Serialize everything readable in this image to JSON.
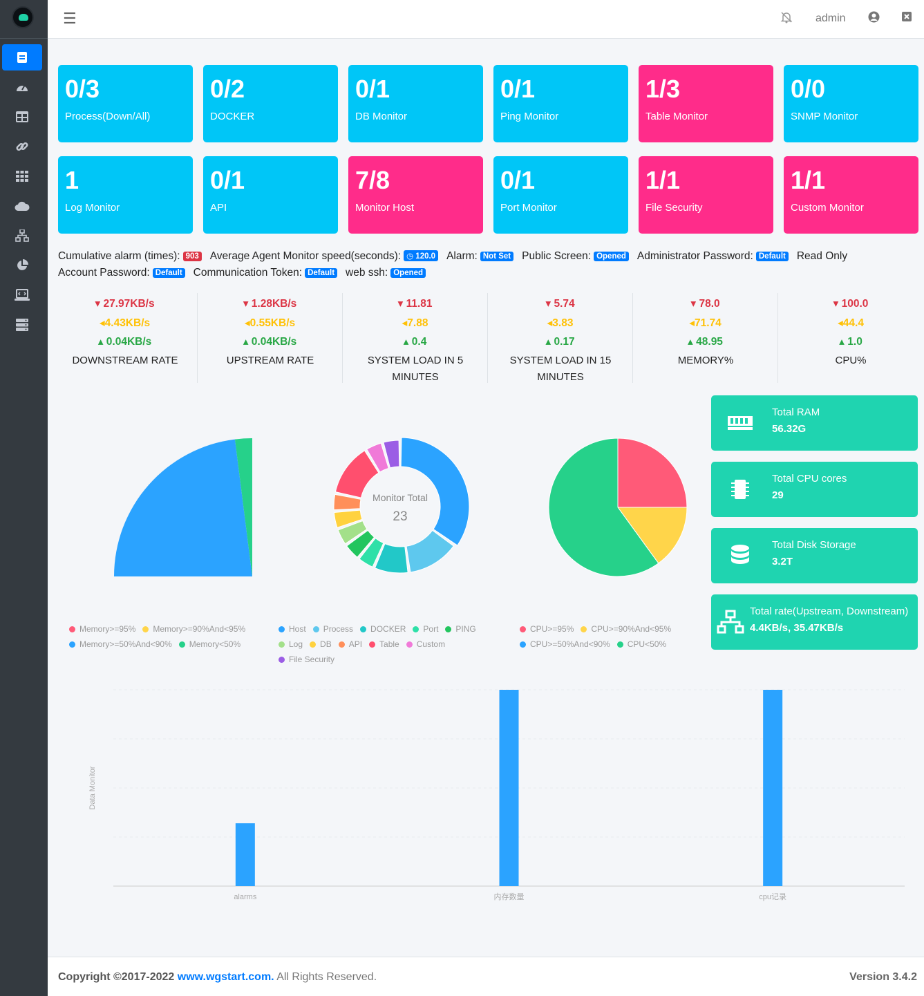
{
  "topbar": {
    "user": "admin"
  },
  "cards": [
    {
      "value": "0/3",
      "label": "Process(Down/All)"
    },
    {
      "value": "0/2",
      "label": "DOCKER"
    },
    {
      "value": "0/1",
      "label": "DB Monitor"
    },
    {
      "value": "0/1",
      "label": "Ping Monitor"
    },
    {
      "value": "1/3",
      "label": "Table Monitor"
    },
    {
      "value": "0/0",
      "label": "SNMP Monitor"
    },
    {
      "value": "1",
      "label": "Log Monitor"
    },
    {
      "value": "0/1",
      "label": "API"
    },
    {
      "value": "7/8",
      "label": "Monitor Host"
    },
    {
      "value": "0/1",
      "label": "Port Monitor"
    },
    {
      "value": "1/1",
      "label": "File Security"
    },
    {
      "value": "1/1",
      "label": "Custom Monitor"
    }
  ],
  "info": {
    "cumulative_label": "Cumulative alarm (times):",
    "cumulative_value": "903",
    "speed_label": "Average Agent Monitor speed(seconds):",
    "speed_value": "120.0",
    "alarm_label": "Alarm:",
    "alarm_value": "Not Set",
    "public_label": "Public Screen:",
    "public_value": "Opened",
    "admin_pw_label": "Administrator Password:",
    "admin_pw_value": "Default",
    "readonly_label": "Read Only",
    "account_pw_label": "Account Password:",
    "account_pw_value": "Default",
    "token_label": "Communication Token:",
    "token_value": "Default",
    "ssh_label": "web ssh:",
    "ssh_value": "Opened"
  },
  "stats": [
    {
      "max": "27.97KB/s",
      "avg": "4.43KB/s",
      "min": "0.04KB/s",
      "title": "DOWNSTREAM RATE"
    },
    {
      "max": "1.28KB/s",
      "avg": "0.55KB/s",
      "min": "0.04KB/s",
      "title": "UPSTREAM RATE"
    },
    {
      "max": "11.81",
      "avg": "7.88",
      "min": "0.4",
      "title": "SYSTEM LOAD IN 5 MINUTES"
    },
    {
      "max": "5.74",
      "avg": "3.83",
      "min": "0.17",
      "title": "SYSTEM LOAD IN 15 MINUTES"
    },
    {
      "max": "78.0",
      "avg": "71.74",
      "min": "48.95",
      "title": "MEMORY%"
    },
    {
      "max": "100.0",
      "avg": "44.4",
      "min": "1.0",
      "title": "CPU%"
    }
  ],
  "infoboxes": [
    {
      "title": "Total RAM",
      "value": "56.32G",
      "icon": "memory-icon"
    },
    {
      "title": "Total CPU cores",
      "value": "29",
      "icon": "microchip-icon"
    },
    {
      "title": "Total Disk Storage",
      "value": "3.2T",
      "icon": "database-icon"
    },
    {
      "title": "Total rate(Upstream, Downstream)",
      "value": "4.4KB/s, 35.47KB/s",
      "icon": "network-icon"
    }
  ],
  "colors": {
    "red": "#ff5a78",
    "yellow": "#ffd54a",
    "blue": "#2ba3ff",
    "green": "#26d18a",
    "teal": "#1fd4b0",
    "card_blue": "#00c6f7",
    "card_pink": "#ff2c8a"
  },
  "chart_data": [
    {
      "type": "pie",
      "legend": [
        "Memory>=95%",
        "Memory>=90%And<95%",
        "Memory>=50%And<90%",
        "Memory<50%"
      ],
      "values": [
        0,
        0,
        23,
        2
      ]
    },
    {
      "type": "pie",
      "center_label": "Monitor Total",
      "center_value": "23",
      "legend": [
        "Host",
        "Process",
        "DOCKER",
        "Port",
        "PING",
        "Log",
        "DB",
        "API",
        "Table",
        "Custom",
        "File Security"
      ],
      "values": [
        8,
        3,
        2,
        1,
        1,
        1,
        1,
        1,
        3,
        1,
        1
      ]
    },
    {
      "type": "pie",
      "legend": [
        "CPU>=95%",
        "CPU>=90%And<95%",
        "CPU>=50%And<90%",
        "CPU<50%"
      ],
      "values": [
        25,
        15,
        0,
        60
      ]
    },
    {
      "type": "bar",
      "ylabel": "Data Monitor",
      "categories": [
        "alarms",
        "内存数量",
        "cpu记录"
      ],
      "values": [
        32,
        100,
        100
      ],
      "ylim": [
        0,
        100
      ]
    }
  ],
  "footer": {
    "copy_prefix": "Copyright ©2017-2022",
    "link": "www.wgstart.com.",
    "copy_suffix": "All Rights Reserved.",
    "version": "Version 3.4.2"
  }
}
